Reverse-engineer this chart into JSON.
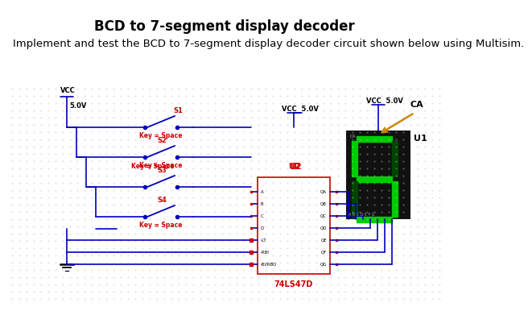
{
  "title": "BCD to 7-segment display decoder",
  "subtitle": "Implement and test the BCD to 7-segment display decoder circuit shown below using Multisim.",
  "bg_color": "#ffffff",
  "wire_color": "#0000bb",
  "label_color": "#cc0000",
  "title_fontsize": 12,
  "subtitle_fontsize": 9.5,
  "vcc_label": "VCC",
  "vcc_voltage": "5.0V",
  "ic_label": "U2",
  "ic_part": "74LS47D",
  "display_label": "U1",
  "ca_label": "CA",
  "vcc_mid_label": "VCC  5.0V",
  "vcc_right_label": "VCC  5.0V",
  "seg_on_color": "#00cc00",
  "seg_off_color": "#004400",
  "display_bg": "#111111"
}
